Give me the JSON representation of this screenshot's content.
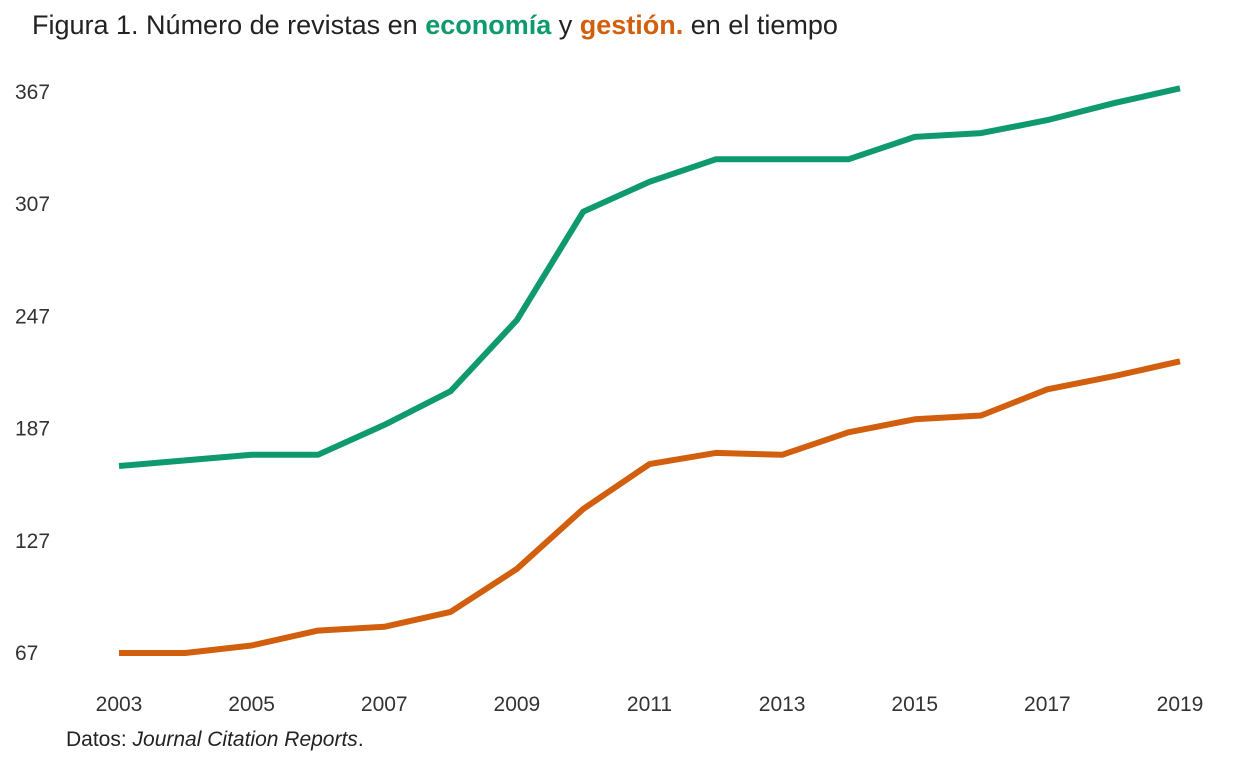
{
  "title": {
    "prefix": "Figura 1. Número de revistas en ",
    "term1": "economía",
    "connector": " y ",
    "term2": "gestión.",
    "suffix": " en el tiempo"
  },
  "caption": {
    "prefix": "Datos: ",
    "source": "Journal Citation Reports",
    "suffix": "."
  },
  "chart_data": {
    "type": "line",
    "title": "Figura 1. Número de revistas en economía y gestión. en el tiempo",
    "xlabel": "",
    "ylabel": "",
    "x": [
      2003,
      2004,
      2005,
      2006,
      2007,
      2008,
      2009,
      2010,
      2011,
      2012,
      2013,
      2014,
      2015,
      2016,
      2017,
      2018,
      2019
    ],
    "xticks": [
      2003,
      2005,
      2007,
      2009,
      2011,
      2013,
      2015,
      2017,
      2019
    ],
    "yticks": [
      67,
      127,
      187,
      247,
      307,
      367
    ],
    "xlim": [
      2003,
      2019
    ],
    "ylim": [
      67,
      367
    ],
    "grid": false,
    "legend": "none (series named in title colors)",
    "series": [
      {
        "name": "economía",
        "color": "#0e9a6e",
        "values": [
          167,
          170,
          173,
          173,
          189,
          207,
          245,
          303,
          319,
          331,
          331,
          331,
          343,
          345,
          352,
          361,
          369
        ]
      },
      {
        "name": "gestión.",
        "color": "#d25f0d",
        "values": [
          67,
          67,
          71,
          79,
          81,
          89,
          112,
          144,
          168,
          174,
          173,
          185,
          192,
          194,
          208,
          215,
          223
        ]
      }
    ]
  }
}
